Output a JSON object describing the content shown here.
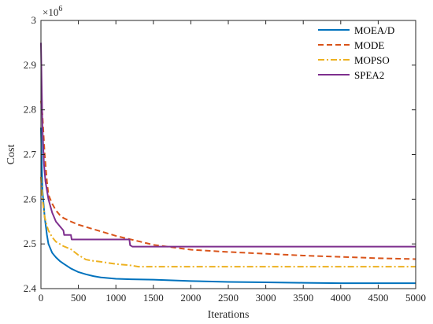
{
  "chart_data": {
    "type": "line",
    "title": "",
    "xlabel": "Iterations",
    "ylabel": "Cost",
    "y_exponent_label": "×10",
    "y_exponent_power": "6",
    "y_scale": 1000000,
    "xlim": [
      0,
      5000
    ],
    "ylim": [
      2.4,
      3.0
    ],
    "xticks": [
      0,
      500,
      1000,
      1500,
      2000,
      2500,
      3000,
      3500,
      4000,
      4500,
      5000
    ],
    "yticks": [
      2.4,
      2.5,
      2.6,
      2.7,
      2.8,
      2.9,
      3.0
    ],
    "ytick_labels": [
      "2.4",
      "2.5",
      "2.6",
      "2.7",
      "2.8",
      "2.9",
      "3"
    ],
    "grid": false,
    "legend_position": "top-right",
    "series": [
      {
        "name": "MOEA/D",
        "color": "#0072bd",
        "style": "solid",
        "x": [
          0,
          20,
          50,
          80,
          100,
          150,
          200,
          250,
          300,
          400,
          500,
          600,
          700,
          800,
          1000,
          1200,
          1500,
          2000,
          2500,
          3000,
          3500,
          4000,
          4500,
          5000
        ],
        "y": [
          2.76,
          2.62,
          2.56,
          2.52,
          2.5,
          2.48,
          2.47,
          2.462,
          2.456,
          2.445,
          2.437,
          2.432,
          2.428,
          2.425,
          2.422,
          2.421,
          2.42,
          2.417,
          2.415,
          2.414,
          2.413,
          2.412,
          2.412,
          2.412
        ]
      },
      {
        "name": "MODE",
        "color": "#d95319",
        "style": "dashed",
        "x": [
          0,
          20,
          50,
          80,
          100,
          150,
          200,
          250,
          300,
          400,
          500,
          700,
          1000,
          1200,
          1500,
          2000,
          2500,
          3000,
          3500,
          4000,
          4500,
          5000
        ],
        "y": [
          2.82,
          2.79,
          2.7,
          2.64,
          2.61,
          2.59,
          2.575,
          2.565,
          2.558,
          2.55,
          2.543,
          2.533,
          2.518,
          2.51,
          2.498,
          2.487,
          2.482,
          2.478,
          2.474,
          2.471,
          2.468,
          2.466
        ]
      },
      {
        "name": "MOPSO",
        "color": "#edb120",
        "style": "dashdot",
        "x": [
          0,
          20,
          50,
          80,
          100,
          150,
          200,
          300,
          400,
          500,
          600,
          700,
          800,
          1000,
          1200,
          1300,
          1500,
          2000,
          3000,
          4000,
          5000
        ],
        "y": [
          2.65,
          2.6,
          2.56,
          2.54,
          2.53,
          2.515,
          2.505,
          2.495,
          2.488,
          2.475,
          2.465,
          2.462,
          2.46,
          2.455,
          2.452,
          2.449,
          2.449,
          2.449,
          2.449,
          2.449,
          2.449
        ]
      },
      {
        "name": "SPEA2",
        "color": "#7e2f8e",
        "style": "solid",
        "x": [
          0,
          20,
          40,
          60,
          100,
          150,
          200,
          300,
          310,
          400,
          410,
          1180,
          1190,
          1220,
          1500,
          2000,
          3000,
          4000,
          5000
        ],
        "y": [
          2.95,
          2.76,
          2.68,
          2.64,
          2.6,
          2.57,
          2.55,
          2.53,
          2.52,
          2.52,
          2.51,
          2.51,
          2.497,
          2.494,
          2.494,
          2.494,
          2.494,
          2.494,
          2.494
        ]
      }
    ]
  }
}
